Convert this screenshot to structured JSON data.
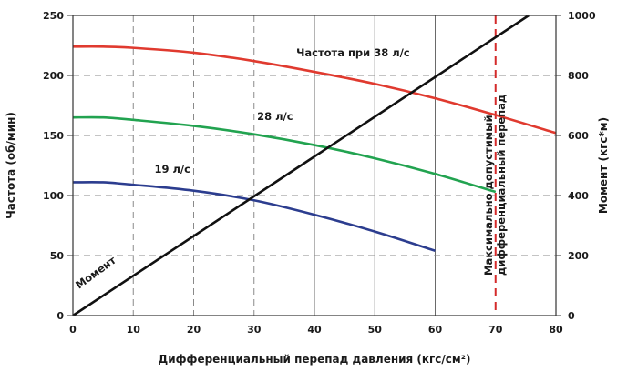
{
  "chart_data": {
    "type": "line",
    "xlabel": "Дифференциальный перепад давления (кгс/см²)",
    "ylabel_left": "Частота (об/мин)",
    "ylabel_right": "Момент (кгс*м)",
    "xlim": [
      0,
      80
    ],
    "ylim_left": [
      0,
      250
    ],
    "ylim_right": [
      0,
      1000
    ],
    "x_ticks": [
      0,
      10,
      20,
      30,
      40,
      50,
      60,
      70,
      80
    ],
    "y_ticks_left": [
      0,
      50,
      100,
      150,
      200,
      250
    ],
    "y_ticks_right": [
      0,
      200,
      400,
      600,
      800,
      1000
    ],
    "grid": true,
    "legend": "none",
    "series": [
      {
        "name": "Частота при 38 л/с",
        "axis": "left",
        "color": "#e03a2f",
        "x": [
          0,
          5,
          10,
          20,
          30,
          40,
          50,
          60,
          70,
          80
        ],
        "y": [
          224,
          224,
          223,
          219,
          212,
          203,
          193,
          181,
          167,
          152
        ]
      },
      {
        "name": "28 л/с",
        "axis": "left",
        "color": "#22a350",
        "x": [
          0,
          5,
          10,
          20,
          30,
          40,
          50,
          60,
          70
        ],
        "y": [
          165,
          165,
          163,
          158,
          151,
          142,
          131,
          118,
          103
        ]
      },
      {
        "name": "19 л/с",
        "axis": "left",
        "color": "#2c3d8f",
        "x": [
          0,
          5,
          10,
          20,
          30,
          40,
          50,
          60
        ],
        "y": [
          111,
          111,
          109,
          104,
          96,
          84,
          70,
          54
        ]
      },
      {
        "name": "Момент",
        "axis": "right",
        "color": "#111111",
        "x": [
          0,
          75.5
        ],
        "y": [
          0,
          1000
        ]
      }
    ],
    "annotations": [
      {
        "text": "Частота при 38 л/с",
        "x": 37,
        "y": 216,
        "axis": "left"
      },
      {
        "text": "28 л/с",
        "x": 30.5,
        "y": 163,
        "axis": "left"
      },
      {
        "text": "19 л/с",
        "x": 13.5,
        "y": 119,
        "axis": "left"
      },
      {
        "text": "Момент",
        "x": 1,
        "y": 22,
        "axis": "left",
        "rotate": -36
      }
    ],
    "limit_line": {
      "x": 70,
      "color": "#d42a2a",
      "label_line1": "Максимально допустимый",
      "label_line2": "дифференциальный перепад"
    }
  }
}
